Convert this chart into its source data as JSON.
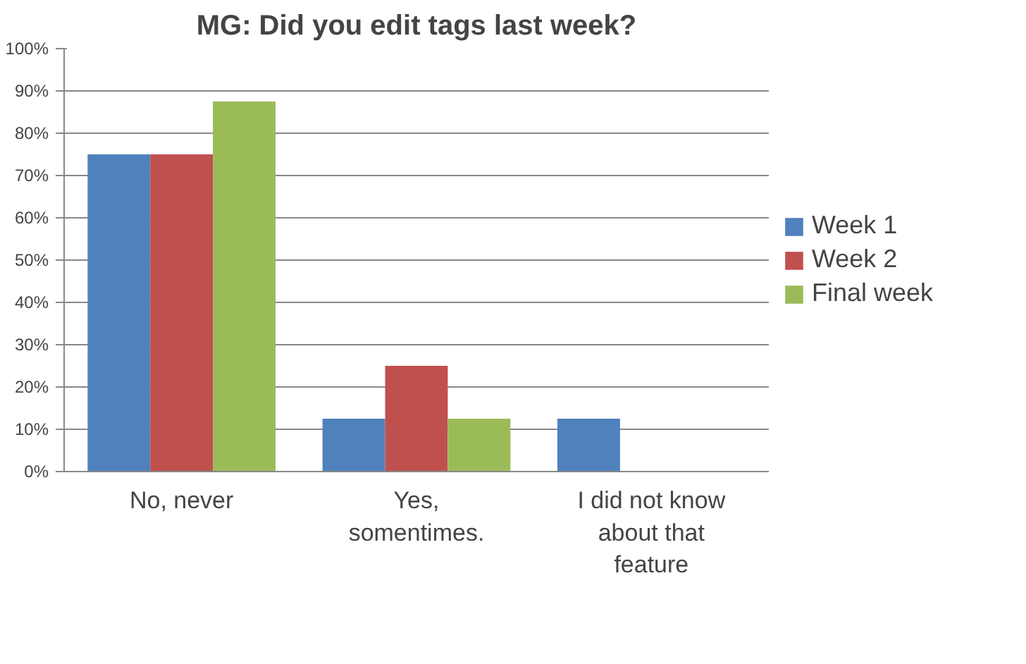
{
  "chart_data": {
    "type": "bar",
    "title": "MG: Did you edit tags last week?",
    "categories": [
      "No, never",
      "Yes, somentimes.",
      "I did not know about that feature"
    ],
    "series": [
      {
        "name": "Week 1",
        "color": "#4f81bd",
        "values": [
          75,
          12.5,
          12.5
        ]
      },
      {
        "name": "Week 2",
        "color": "#c0504d",
        "values": [
          75,
          25,
          0
        ]
      },
      {
        "name": "Final week",
        "color": "#9bbb59",
        "values": [
          87.5,
          12.5,
          0
        ]
      }
    ],
    "ylim": [
      0,
      100
    ],
    "yticks": [
      {
        "value": 0,
        "label": "0%"
      },
      {
        "value": 10,
        "label": "10%"
      },
      {
        "value": 20,
        "label": "20%"
      },
      {
        "value": 30,
        "label": "30%"
      },
      {
        "value": 40,
        "label": "40%"
      },
      {
        "value": 50,
        "label": "50%"
      },
      {
        "value": 60,
        "label": "60%"
      },
      {
        "value": 70,
        "label": "70%"
      },
      {
        "value": 80,
        "label": "80%"
      },
      {
        "value": 90,
        "label": "90%"
      },
      {
        "value": 100,
        "label": "100%"
      }
    ],
    "grid": "y",
    "legend": "right"
  }
}
